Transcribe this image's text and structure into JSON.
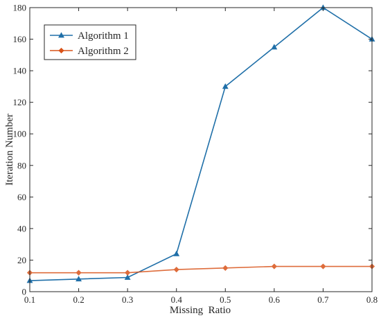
{
  "chart_data": {
    "type": "line",
    "xlabel": "Missing  Ratio",
    "ylabel": "Iteration Number",
    "x": [
      0.1,
      0.2,
      0.3,
      0.4,
      0.5,
      0.6,
      0.7,
      0.8
    ],
    "xlim": [
      0.1,
      0.8
    ],
    "ylim": [
      0,
      180
    ],
    "xticks": [
      "0.1",
      "0.2",
      "0.3",
      "0.4",
      "0.5",
      "0.6",
      "0.7",
      "0.8"
    ],
    "yticks": [
      "0",
      "20",
      "40",
      "60",
      "80",
      "100",
      "120",
      "140",
      "160",
      "180"
    ],
    "grid": false,
    "legend_position": "top-left",
    "series": [
      {
        "name": "Algorithm 1",
        "values": [
          7,
          8,
          9,
          24,
          130,
          155,
          180,
          160
        ],
        "color": "#1f6fa8",
        "marker": "triangle-up"
      },
      {
        "name": "Algorithm 2",
        "values": [
          12,
          12,
          12,
          14,
          15,
          16,
          16,
          16
        ],
        "color": "#d95319",
        "marker": "diamond"
      }
    ]
  }
}
